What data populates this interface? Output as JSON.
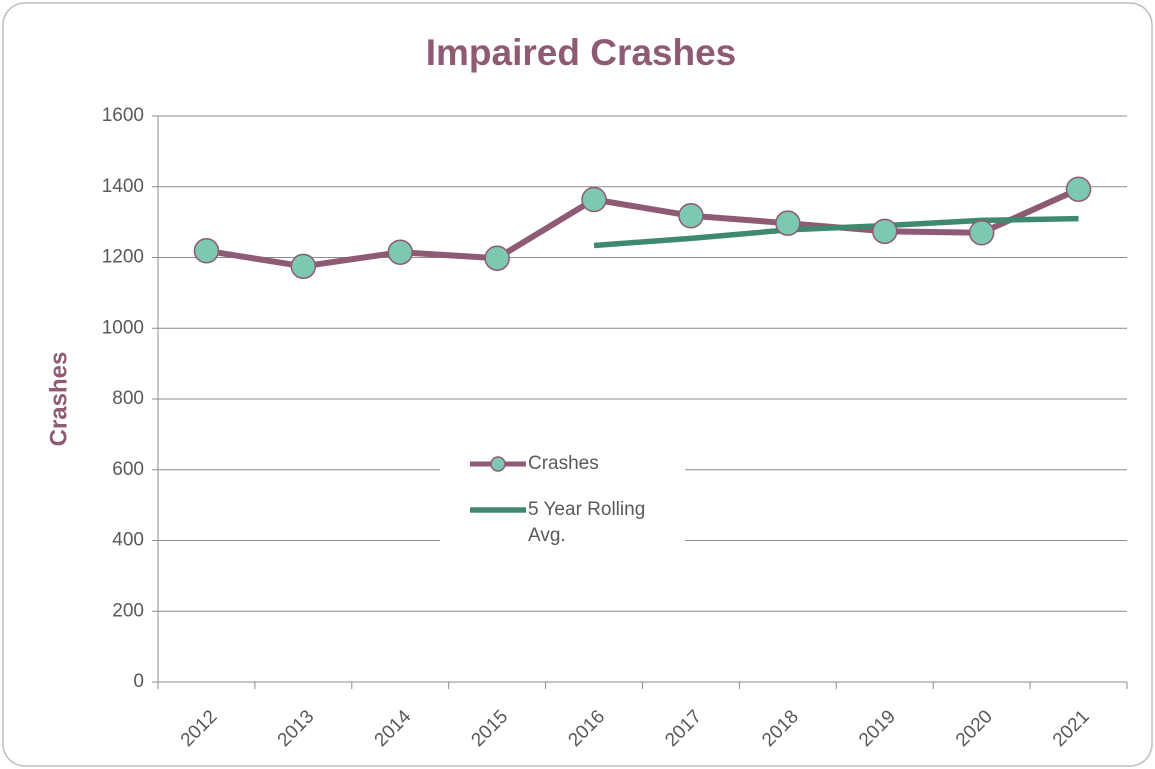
{
  "chart_data": {
    "type": "line",
    "title": "Impaired Crashes",
    "y_label": "Crashes",
    "categories": [
      "2012",
      "2013",
      "2014",
      "2015",
      "2016",
      "2017",
      "2018",
      "2019",
      "2020",
      "2021"
    ],
    "series": [
      {
        "name": "Crashes",
        "color": "#8e5a74",
        "marker_color": "#7cc8b0",
        "values": [
          1219,
          1175,
          1215,
          1198,
          1364,
          1318,
          1297,
          1274,
          1270,
          1393
        ]
      },
      {
        "name": "5 Year Rolling Avg.",
        "color": "#3f8a6f",
        "values": [
          null,
          null,
          null,
          null,
          1234,
          1254,
          1278,
          1290,
          1305,
          1310
        ]
      }
    ],
    "ylim": [
      0,
      1600
    ],
    "yticks": [
      0,
      200,
      400,
      600,
      800,
      1000,
      1200,
      1400,
      1600
    ],
    "grid": true
  }
}
